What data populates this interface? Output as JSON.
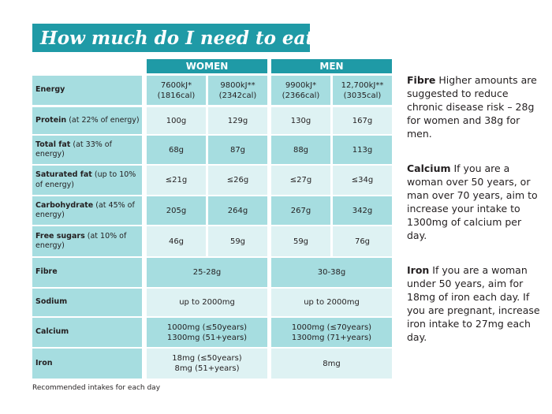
{
  "title": "How much do I need to eat?",
  "columns": {
    "women": "WOMEN",
    "men": "MEN"
  },
  "rows": [
    {
      "label": "Energy",
      "sub": "",
      "cells": [
        "7600kJ*\n(1816cal)",
        "9800kJ**\n(2342cal)",
        "9900kJ*\n(2366cal)",
        "12,700kJ**\n(3035cal)"
      ]
    },
    {
      "label": "Protein",
      "sub": " (at 22% of energy)",
      "cells": [
        "100g",
        "129g",
        "130g",
        "167g"
      ]
    },
    {
      "label": "Total fat",
      "sub": " (at 33% of energy)",
      "cells": [
        "68g",
        "87g",
        "88g",
        "113g"
      ]
    },
    {
      "label": "Saturated fat",
      "sub": " (up to 10% of energy)",
      "cells": [
        "≤21g",
        "≤26g",
        "≤27g",
        "≤34g"
      ]
    },
    {
      "label": "Carbohydrate",
      "sub": " (at 45% of energy)",
      "cells": [
        "205g",
        "264g",
        "267g",
        "342g"
      ]
    },
    {
      "label": "Free sugars",
      "sub": " (at 10% of energy)",
      "cells": [
        "46g",
        "59g",
        "59g",
        "76g"
      ]
    },
    {
      "label": "Fibre",
      "sub": "",
      "women": "25-28g",
      "men": "30-38g"
    },
    {
      "label": "Sodium",
      "sub": "",
      "women": "up to 2000mg",
      "men": "up to 2000mg"
    },
    {
      "label": "Calcium",
      "sub": "",
      "women": "1000mg (≤50years)\n1300mg (51+years)",
      "men": "1000mg (≤70years)\n1300mg (71+years)"
    },
    {
      "label": "Iron",
      "sub": "",
      "women": "18mg (≤50years)\n8mg (51+years)",
      "men": "8mg"
    }
  ],
  "footnote": "Recommended intakes for each day",
  "side_notes": [
    {
      "heading": "Fibre",
      "text": " Higher amounts are suggested to reduce chronic disease risk – 28g for women and 38g for men."
    },
    {
      "heading": "Calcium",
      "text": " If you are a woman over 50 years, or man over 70 years, aim to increase your intake to 1300mg of calcium per day."
    },
    {
      "heading": "Iron",
      "text": " If you are a woman under 50 years, aim for 18mg of iron each day. If you are pregnant, increase iron intake to 27mg each day."
    }
  ]
}
